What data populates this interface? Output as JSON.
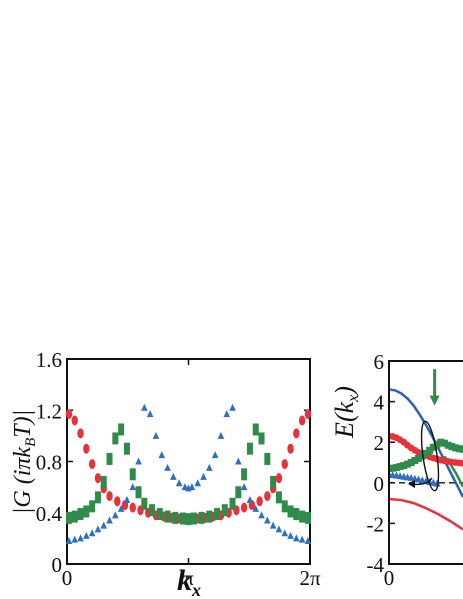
{
  "colors": {
    "red": "#e8323a",
    "green": "#2e8b4a",
    "blue": "#2f6fc2",
    "blue_line": "#2a62b8",
    "axis": "#111111"
  },
  "chart_data": [
    {
      "type": "scatter",
      "ylabel": "|G (iπk_BT)|",
      "xlabel": "k_x",
      "xlim": [
        0,
        6.2832
      ],
      "ylim": [
        0,
        1.6
      ],
      "xticks": [
        {
          "value": 0,
          "label": "0"
        },
        {
          "value": 3.1416,
          "label": "π"
        },
        {
          "value": 6.2832,
          "label": "2π"
        }
      ],
      "yticks": [
        {
          "value": 0,
          "label": "0"
        },
        {
          "value": 0.4,
          "label": "0.4"
        },
        {
          "value": 0.8,
          "label": "0.8"
        },
        {
          "value": 1.2,
          "label": "1.2"
        },
        {
          "value": 1.6,
          "label": "1.6"
        }
      ],
      "grid": false,
      "series": [
        {
          "color": "red",
          "marker": "circle",
          "x": [
            0.05,
            0.2,
            0.35,
            0.5,
            0.65,
            0.8,
            0.95,
            1.1,
            1.3,
            1.5,
            1.7,
            1.9,
            2.1,
            2.3,
            2.5,
            2.7,
            2.9,
            3.14,
            3.38,
            3.58,
            3.78,
            3.98,
            4.18,
            4.38,
            4.58,
            4.78,
            4.98,
            5.18,
            5.33,
            5.48,
            5.63,
            5.78,
            5.93,
            6.08,
            6.23
          ],
          "y": [
            1.17,
            1.12,
            1.02,
            0.9,
            0.78,
            0.67,
            0.59,
            0.53,
            0.49,
            0.46,
            0.44,
            0.42,
            0.4,
            0.38,
            0.37,
            0.36,
            0.355,
            0.35,
            0.355,
            0.36,
            0.37,
            0.38,
            0.4,
            0.42,
            0.44,
            0.46,
            0.49,
            0.53,
            0.59,
            0.67,
            0.78,
            0.9,
            1.02,
            1.12,
            1.17
          ]
        },
        {
          "color": "green",
          "marker": "square",
          "x": [
            0.05,
            0.2,
            0.35,
            0.5,
            0.65,
            0.8,
            0.95,
            1.1,
            1.25,
            1.4,
            1.55,
            1.7,
            1.85,
            2.0,
            2.2,
            2.4,
            2.6,
            2.8,
            3.0,
            3.14,
            3.28,
            3.48,
            3.68,
            3.88,
            4.08,
            4.28,
            4.43,
            4.58,
            4.73,
            4.88,
            5.03,
            5.18,
            5.33,
            5.48,
            5.63,
            5.78,
            5.93,
            6.08,
            6.23
          ],
          "y": [
            0.36,
            0.37,
            0.39,
            0.41,
            0.45,
            0.52,
            0.64,
            0.82,
            0.98,
            1.05,
            0.9,
            0.7,
            0.56,
            0.47,
            0.42,
            0.39,
            0.37,
            0.36,
            0.355,
            0.35,
            0.355,
            0.36,
            0.37,
            0.39,
            0.42,
            0.47,
            0.56,
            0.7,
            0.9,
            1.05,
            0.98,
            0.82,
            0.64,
            0.52,
            0.45,
            0.41,
            0.39,
            0.37,
            0.36
          ]
        },
        {
          "color": "blue",
          "marker": "triangle",
          "x": [
            0.05,
            0.2,
            0.35,
            0.5,
            0.65,
            0.8,
            0.95,
            1.1,
            1.25,
            1.4,
            1.55,
            1.7,
            1.85,
            2.0,
            2.15,
            2.3,
            2.45,
            2.6,
            2.75,
            2.9,
            3.05,
            3.14,
            3.23,
            3.38,
            3.53,
            3.68,
            3.83,
            3.98,
            4.13,
            4.28,
            4.43,
            4.58,
            4.73,
            4.88,
            5.03,
            5.18,
            5.33,
            5.48,
            5.63,
            5.78,
            5.93,
            6.08,
            6.23
          ],
          "y": [
            0.18,
            0.19,
            0.2,
            0.22,
            0.24,
            0.27,
            0.3,
            0.34,
            0.38,
            0.43,
            0.5,
            0.6,
            0.8,
            1.22,
            1.17,
            1.0,
            0.85,
            0.75,
            0.68,
            0.63,
            0.6,
            0.59,
            0.6,
            0.63,
            0.68,
            0.75,
            0.85,
            1.0,
            1.17,
            1.22,
            0.8,
            0.6,
            0.5,
            0.43,
            0.38,
            0.34,
            0.3,
            0.27,
            0.24,
            0.22,
            0.2,
            0.19,
            0.18
          ]
        }
      ]
    },
    {
      "type": "line",
      "ylabel": "E(k_x)",
      "xlim": [
        0,
        0.6
      ],
      "ylim": [
        -4,
        6
      ],
      "xticks": [
        {
          "value": 0,
          "label": "0"
        }
      ],
      "yticks": [
        {
          "value": -4,
          "label": "-4"
        },
        {
          "value": -2,
          "label": "-2"
        },
        {
          "value": 0,
          "label": "0"
        },
        {
          "value": 2,
          "label": "2"
        },
        {
          "value": 4,
          "label": "4"
        },
        {
          "value": 6,
          "label": "6"
        }
      ],
      "zero_line": "dashed",
      "series": [
        {
          "color": "blue_line",
          "style": "line",
          "x": [
            0,
            0.05,
            0.1,
            0.15,
            0.2,
            0.25,
            0.3,
            0.35,
            0.4,
            0.45,
            0.5,
            0.55,
            0.6
          ],
          "y": [
            4.6,
            4.55,
            4.4,
            4.15,
            3.8,
            3.35,
            2.85,
            2.3,
            1.7,
            1.1,
            0.5,
            -0.1,
            -0.7
          ]
        },
        {
          "color": "red",
          "style": "line",
          "x": [
            0,
            0.1,
            0.2,
            0.3,
            0.4,
            0.5,
            0.6
          ],
          "y": [
            -0.8,
            -0.85,
            -1.0,
            -1.25,
            -1.55,
            -1.9,
            -2.3
          ]
        },
        {
          "color": "green",
          "style": "line",
          "x": [
            0.45,
            0.5,
            0.55,
            0.6
          ],
          "y": [
            1.3,
            0.9,
            0.4,
            -0.2
          ]
        },
        {
          "color": "red",
          "style": "points",
          "x": [
            0,
            0.03,
            0.06,
            0.09,
            0.12,
            0.15,
            0.18,
            0.21,
            0.24,
            0.27,
            0.3,
            0.33,
            0.36,
            0.39,
            0.42,
            0.45,
            0.48,
            0.51,
            0.54,
            0.57,
            0.6
          ],
          "y": [
            2.3,
            2.28,
            2.22,
            2.12,
            2.0,
            1.85,
            1.72,
            1.6,
            1.5,
            1.42,
            1.35,
            1.28,
            1.22,
            1.17,
            1.12,
            1.08,
            1.05,
            1.02,
            1.0,
            0.98,
            0.96
          ]
        },
        {
          "color": "green",
          "style": "points",
          "x": [
            0,
            0.03,
            0.06,
            0.09,
            0.12,
            0.15,
            0.18,
            0.21,
            0.24,
            0.27,
            0.3,
            0.33,
            0.36,
            0.39,
            0.42,
            0.45,
            0.48,
            0.51,
            0.54,
            0.57,
            0.6
          ],
          "y": [
            0.7,
            0.72,
            0.75,
            0.8,
            0.85,
            0.92,
            1.0,
            1.1,
            1.2,
            1.32,
            1.45,
            1.6,
            1.75,
            1.9,
            2.0,
            1.95,
            1.85,
            1.78,
            1.72,
            1.68,
            1.65
          ]
        },
        {
          "color": "blue",
          "style": "points",
          "x": [
            0,
            0.03,
            0.06,
            0.09,
            0.12,
            0.15,
            0.18,
            0.21,
            0.24,
            0.27,
            0.3,
            0.33,
            0.36,
            0.39
          ],
          "y": [
            0.4,
            0.38,
            0.36,
            0.33,
            0.3,
            0.27,
            0.24,
            0.2,
            0.16,
            0.12,
            0.08,
            0.04,
            0.0,
            -0.04
          ]
        }
      ],
      "annotations": [
        {
          "type": "arrow",
          "color": "green",
          "x": 0.37,
          "y_from": 5.6,
          "y_to": 3.9
        }
      ]
    }
  ]
}
